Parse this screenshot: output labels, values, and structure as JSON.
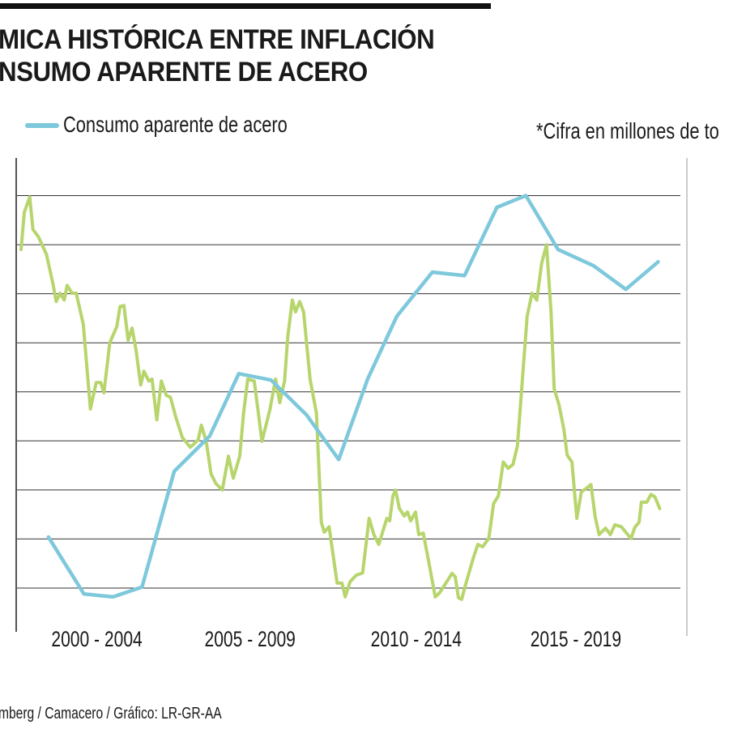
{
  "header": {
    "title_line1": "MICA HISTÓRICA ENTRE INFLACIÓN",
    "title_line2": "NSUMO APARENTE DE ACERO"
  },
  "note": "*Cifra en millones de to",
  "source": "mberg / Camacero / Gráfico: LR-GR-AA",
  "colors": {
    "consumo": "#7ec8dc",
    "inflacion": "#b7d56c",
    "grid": "#333333"
  },
  "chart_data": {
    "type": "line",
    "title": "…MICA HISTÓRICA ENTRE INFLACIÓN … NSUMO APARENTE DE ACERO",
    "xlabel": "",
    "ylabel": "",
    "xlim": [
      1999.5,
      2019.8
    ],
    "ylim": [
      -0.9,
      8.9
    ],
    "grid": true,
    "legend_placement": "top-left",
    "x_tick_labels": [
      "2000 - 2004",
      "2005 - 2009",
      "2010 - 2014",
      "2015 - 2019"
    ],
    "x_tick_positions": [
      2002,
      2006.75,
      2011.9,
      2016.85
    ],
    "gridlines": [
      0,
      1,
      2,
      3,
      4,
      5,
      6,
      7,
      8
    ],
    "series": [
      {
        "name": "Consumo aparente de acero",
        "color": "#7ec8dc",
        "x": [
          2000.5,
          2001.6,
          2002.5,
          2003.4,
          2004.4,
          2005.5,
          2006.4,
          2007.4,
          2008.5,
          2009.5,
          2010.4,
          2011.3,
          2012.4,
          2013.4,
          2014.4,
          2015.3,
          2016.3,
          2017.4,
          2018.4,
          2019.4
        ],
        "y": [
          1.04,
          -0.12,
          -0.18,
          0.02,
          2.38,
          3.1,
          4.37,
          4.24,
          3.53,
          2.62,
          4.27,
          5.54,
          6.44,
          6.37,
          7.76,
          8.0,
          6.9,
          6.57,
          6.09,
          6.65
        ]
      },
      {
        "name": "Inflación",
        "color": "#b7d56c",
        "x": [
          1999.65,
          1999.75,
          1999.92,
          2000.02,
          2000.19,
          2000.44,
          2000.64,
          2000.74,
          2000.86,
          2000.99,
          2001.08,
          2001.23,
          2001.36,
          2001.58,
          2001.8,
          2001.98,
          2002.12,
          2002.22,
          2002.4,
          2002.62,
          2002.72,
          2002.84,
          2002.97,
          2003.09,
          2003.21,
          2003.36,
          2003.46,
          2003.61,
          2003.71,
          2003.86,
          2004.0,
          2004.15,
          2004.28,
          2004.45,
          2004.65,
          2004.9,
          2005.14,
          2005.24,
          2005.39,
          2005.54,
          2005.69,
          2005.89,
          2006.08,
          2006.23,
          2006.43,
          2006.55,
          2006.68,
          2006.88,
          2007.12,
          2007.37,
          2007.54,
          2007.67,
          2007.82,
          2007.92,
          2008.06,
          2008.16,
          2008.29,
          2008.41,
          2008.61,
          2008.81,
          2008.96,
          2009.05,
          2009.2,
          2009.45,
          2009.6,
          2009.7,
          2009.85,
          2010.04,
          2010.24,
          2010.44,
          2010.59,
          2010.74,
          2010.99,
          2011.08,
          2011.18,
          2011.26,
          2011.38,
          2011.53,
          2011.63,
          2011.73,
          2011.88,
          2011.98,
          2012.12,
          2012.32,
          2012.49,
          2012.62,
          2012.87,
          2013.01,
          2013.11,
          2013.21,
          2013.31,
          2013.41,
          2013.66,
          2013.81,
          2013.96,
          2014.15,
          2014.3,
          2014.45,
          2014.6,
          2014.75,
          2014.9,
          2015.04,
          2015.19,
          2015.34,
          2015.49,
          2015.64,
          2015.79,
          2015.94,
          2016.08,
          2016.18,
          2016.33,
          2016.48,
          2016.58,
          2016.73,
          2016.88,
          2017.02,
          2017.17,
          2017.32,
          2017.45,
          2017.57,
          2017.77,
          2017.92,
          2018.06,
          2018.26,
          2018.46,
          2018.56,
          2018.68,
          2018.81,
          2018.88,
          2019.05,
          2019.18,
          2019.3,
          2019.45
        ],
        "y": [
          6.9,
          7.66,
          7.97,
          7.31,
          7.16,
          6.8,
          6.2,
          5.84,
          6.01,
          5.87,
          6.17,
          6.01,
          6.01,
          5.38,
          3.65,
          4.19,
          4.19,
          3.98,
          5.0,
          5.33,
          5.74,
          5.76,
          5.05,
          5.3,
          4.88,
          4.14,
          4.42,
          4.22,
          4.26,
          3.43,
          4.22,
          3.93,
          3.89,
          3.48,
          3.07,
          2.87,
          3.02,
          3.32,
          2.99,
          2.33,
          2.13,
          2.0,
          2.69,
          2.24,
          2.69,
          3.56,
          4.26,
          4.22,
          2.99,
          3.65,
          4.26,
          3.78,
          4.22,
          5.13,
          5.87,
          5.63,
          5.84,
          5.63,
          4.26,
          3.56,
          1.34,
          1.14,
          1.25,
          0.1,
          0.1,
          -0.18,
          0.13,
          0.26,
          0.31,
          1.42,
          1.09,
          0.89,
          1.42,
          1.37,
          1.88,
          2.0,
          1.62,
          1.47,
          1.55,
          1.37,
          1.55,
          1.09,
          1.12,
          0.43,
          -0.18,
          -0.1,
          0.15,
          0.3,
          0.23,
          -0.2,
          -0.23,
          0.02,
          0.59,
          0.89,
          0.84,
          1.01,
          1.72,
          1.88,
          2.57,
          2.44,
          2.52,
          2.9,
          4.22,
          5.54,
          6.01,
          5.87,
          6.62,
          7.0,
          5.63,
          4.06,
          3.73,
          3.23,
          2.71,
          2.57,
          1.42,
          1.96,
          2.03,
          2.11,
          1.45,
          1.09,
          1.22,
          1.09,
          1.29,
          1.25,
          1.09,
          1.01,
          1.24,
          1.34,
          1.75,
          1.75,
          1.91,
          1.86,
          1.62
        ]
      }
    ]
  }
}
